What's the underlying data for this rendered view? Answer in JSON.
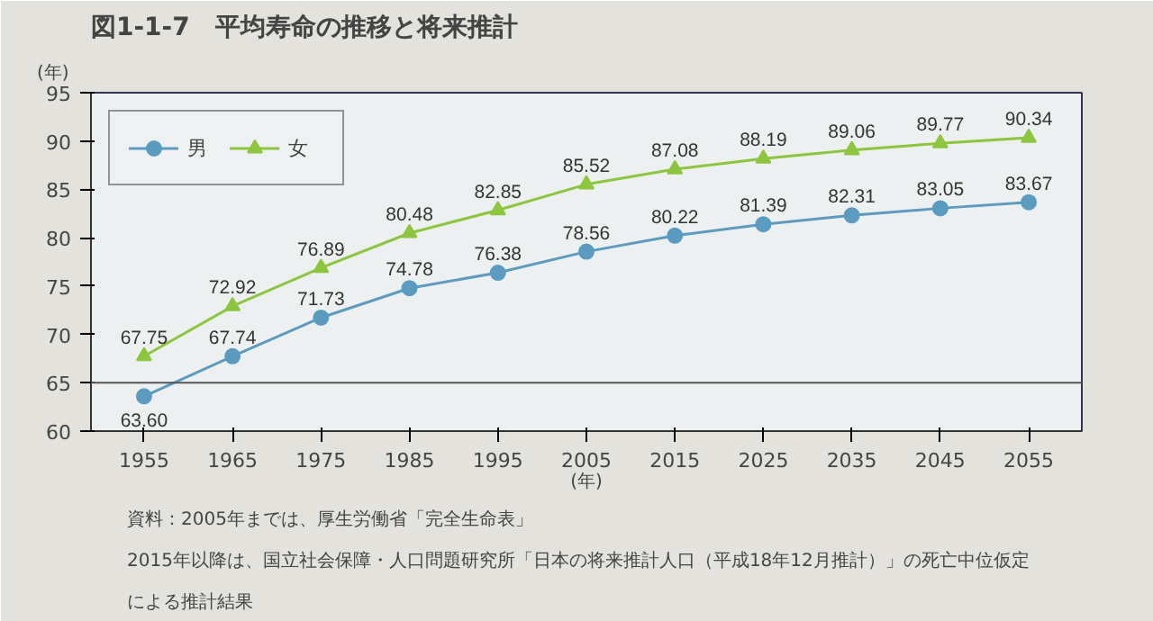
{
  "chart_data": {
    "type": "line",
    "title": "図1-1-7　平均寿命の推移と将来推計",
    "ylabel": "(年)",
    "xlabel": "(年)",
    "categories": [
      "1955",
      "1965",
      "1975",
      "1985",
      "1995",
      "2005",
      "2015",
      "2025",
      "2035",
      "2045",
      "2055"
    ],
    "series": [
      {
        "name": "男",
        "color": "#5b9bc0",
        "marker": "circle",
        "values": [
          63.6,
          67.74,
          71.73,
          74.78,
          76.38,
          78.56,
          80.22,
          81.39,
          82.31,
          83.05,
          83.67
        ],
        "value_labels": [
          "63.60",
          "67.74",
          "71.73",
          "74.78",
          "76.38",
          "78.56",
          "80.22",
          "81.39",
          "82.31",
          "83.05",
          "83.67"
        ]
      },
      {
        "name": "女",
        "color": "#8cc63f",
        "marker": "triangle",
        "values": [
          67.75,
          72.92,
          76.89,
          80.48,
          82.85,
          85.52,
          87.08,
          88.19,
          89.06,
          89.77,
          90.34
        ],
        "value_labels": [
          "67.75",
          "72.92",
          "76.89",
          "80.48",
          "82.85",
          "85.52",
          "87.08",
          "88.19",
          "89.06",
          "89.77",
          "90.34"
        ]
      }
    ],
    "ylim": [
      60,
      95
    ],
    "yticks": [
      60,
      65,
      70,
      75,
      80,
      85,
      90,
      95
    ],
    "ref_lines": [
      {
        "axis": "y",
        "value": 65,
        "color": "#555555"
      }
    ],
    "grid": false,
    "legend": "top left",
    "annotations": [
      "資料：2005年までは、厚生労働省「完全生命表」",
      "2015年以降は、国立社会保障・人口問題研究所「日本の将来推計人口（平成18年12月推計）」の死亡中位仮定",
      "による推計結果"
    ]
  }
}
